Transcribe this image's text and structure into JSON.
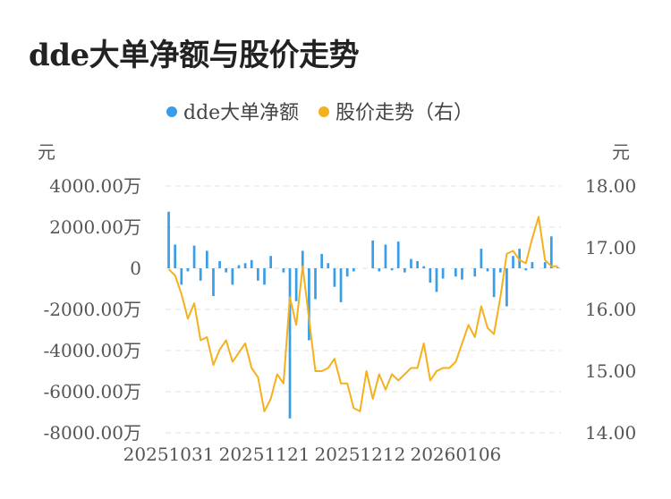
{
  "title": "dde大单净额与股价走势",
  "chart_data": {
    "type": "bar+line",
    "title": "dde大单净额与股价走势",
    "left_axis_unit": "元",
    "right_axis_unit": "元",
    "left_ticks": [
      "4000.00万",
      "2000.00万",
      "0",
      "-2000.00万",
      "-4000.00万",
      "-6000.00万",
      "-8000.00万"
    ],
    "left_range": [
      -8000,
      4000
    ],
    "right_ticks": [
      "18.00",
      "17.00",
      "16.00",
      "15.00",
      "14.00"
    ],
    "right_range": [
      14,
      18
    ],
    "x_ticks": [
      "20251031",
      "20251121",
      "20251212",
      "20260106"
    ],
    "grid": true,
    "legend_position": "top-center",
    "series": [
      {
        "name": "dde大单净额",
        "type": "bar",
        "axis": "left",
        "unit": "万",
        "color": "#3a9de8",
        "values": [
          2750,
          1150,
          -800,
          -150,
          1100,
          -600,
          850,
          -1350,
          350,
          -200,
          -800,
          150,
          250,
          400,
          -600,
          -800,
          600,
          0,
          -200,
          -7300,
          -1600,
          850,
          -3500,
          -1500,
          700,
          250,
          -900,
          -1650,
          -400,
          -150,
          0,
          0,
          1350,
          -150,
          1150,
          -100,
          1300,
          -200,
          450,
          350,
          100,
          -700,
          -1150,
          -500,
          0,
          -400,
          -550,
          0,
          -400,
          950,
          -150,
          -1400,
          -200,
          -1850,
          600,
          950,
          -100,
          300,
          0,
          300,
          1550,
          50
        ]
      },
      {
        "name": "股价走势（右）",
        "type": "line",
        "axis": "right",
        "color": "#f5b01d",
        "values": [
          16.65,
          16.55,
          16.25,
          15.85,
          16.1,
          15.5,
          15.55,
          15.1,
          15.35,
          15.5,
          15.15,
          15.3,
          15.45,
          15.05,
          14.9,
          14.35,
          14.55,
          14.95,
          14.8,
          16.2,
          15.75,
          16.7,
          15.85,
          15.0,
          15.0,
          15.05,
          15.2,
          14.8,
          14.8,
          14.4,
          14.35,
          15.0,
          14.55,
          14.95,
          14.7,
          14.95,
          14.85,
          14.95,
          15.05,
          15.05,
          15.45,
          14.85,
          15.0,
          15.05,
          15.05,
          15.15,
          15.45,
          15.75,
          15.55,
          16.05,
          15.7,
          15.6,
          16.2,
          16.9,
          16.95,
          16.8,
          16.75,
          17.15,
          17.5,
          16.8,
          16.7,
          16.7
        ]
      }
    ]
  }
}
